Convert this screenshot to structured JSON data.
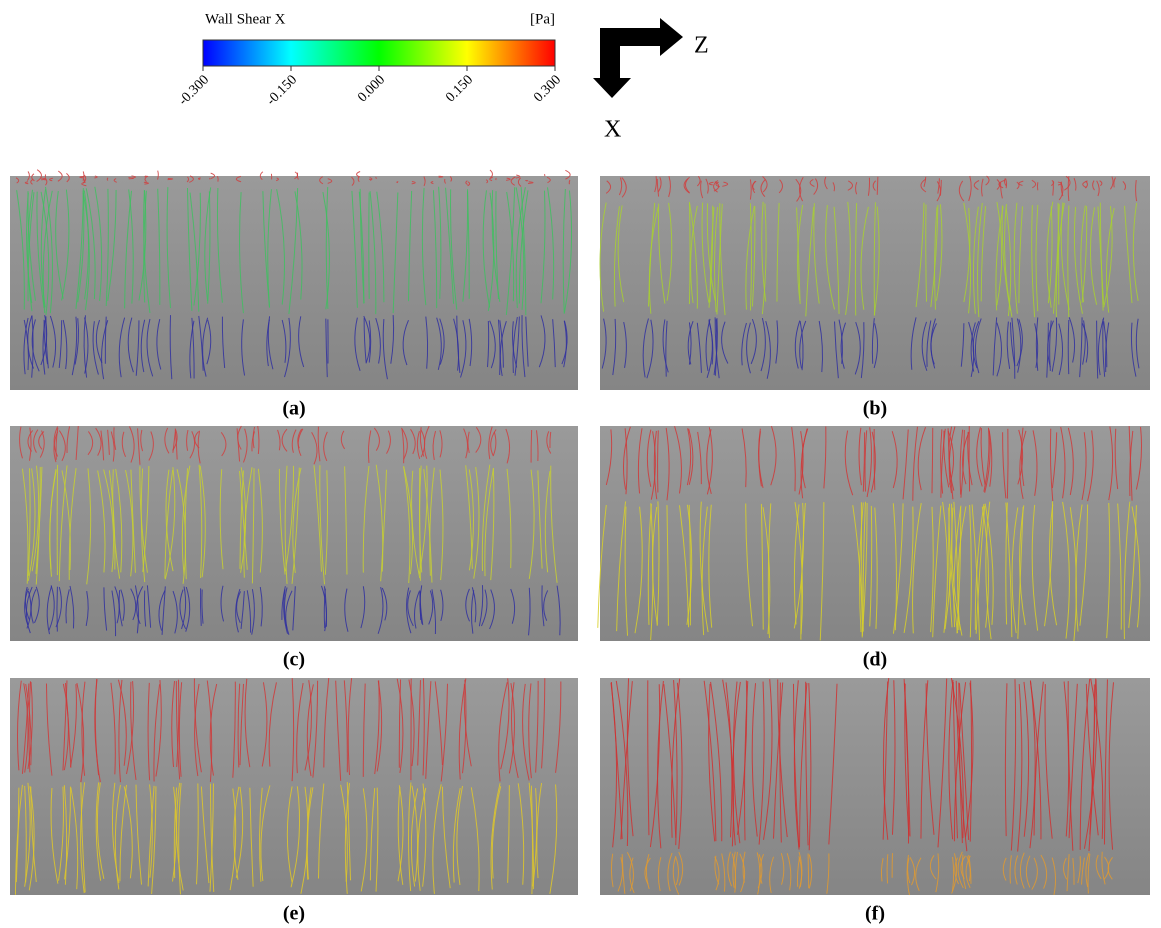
{
  "legend": {
    "title": "Wall Shear X",
    "unit": "[Pa]",
    "ticks": [
      {
        "value": -0.3,
        "label": "-0.300"
      },
      {
        "value": -0.15,
        "label": "-0.150"
      },
      {
        "value": 0,
        "label": "0.000"
      },
      {
        "value": 0.15,
        "label": "0.150"
      },
      {
        "value": 0.3,
        "label": "0.300"
      }
    ],
    "range": [
      -0.3,
      0.3
    ]
  },
  "axes": {
    "horizontal": "Z",
    "vertical": "X"
  },
  "panels": [
    {
      "label": "(a)"
    },
    {
      "label": "(b)"
    },
    {
      "label": "(c)"
    },
    {
      "label": "(d)"
    },
    {
      "label": "(e)"
    },
    {
      "label": "(f)"
    }
  ]
}
